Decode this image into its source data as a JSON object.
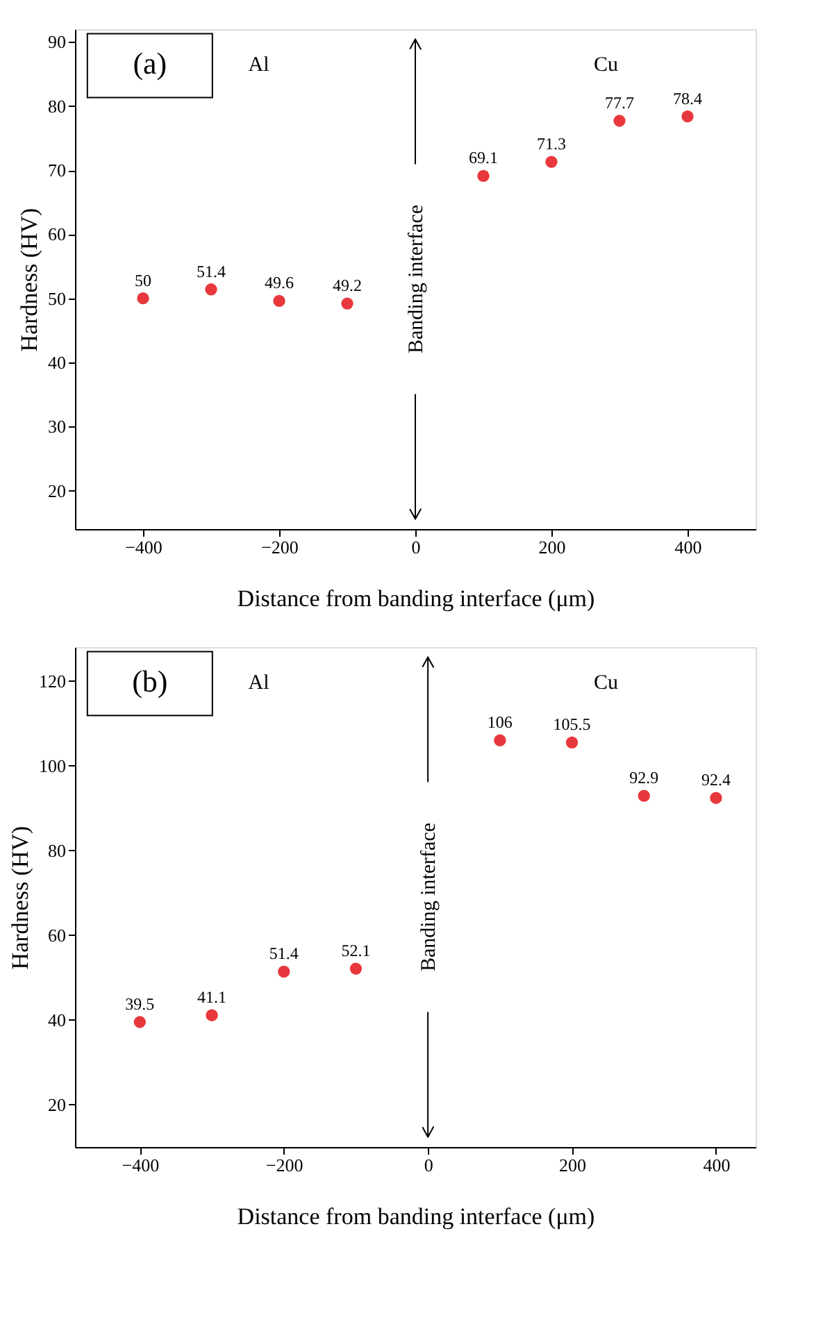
{
  "chart_data": [
    {
      "type": "scatter",
      "xlabel": "Distance from banding interface (μm)",
      "ylabel": "Hardness (HV)",
      "annotations": [
        "(a)",
        "Al",
        "Cu"
      ],
      "x": [
        -400,
        -300,
        -200,
        -100,
        100,
        200,
        300,
        400
      ],
      "series": [
        {
          "color": "#e8383d",
          "values": [
            50,
            51.4,
            49.6,
            49.2,
            69.1,
            71.3,
            77.7,
            78.4
          ]
        }
      ],
      "xlim": [
        -500,
        500
      ],
      "xticks": [
        -400,
        -200,
        0,
        200,
        400
      ],
      "ylim": [
        14,
        92
      ],
      "yticks": [
        20,
        30,
        40,
        50,
        60,
        70,
        80,
        90
      ],
      "ref_lines": [
        {
          "axis": "x",
          "value": 0,
          "label": "Banding interface",
          "color": "#000000"
        }
      ],
      "data_labels": true,
      "marker": "circle"
    },
    {
      "type": "scatter",
      "xlabel": "Distance from banding interface (μm)",
      "ylabel": "Hardness (HV)",
      "annotations": [
        "(b)",
        "Al",
        "Cu"
      ],
      "x": [
        -400,
        -300,
        -200,
        -100,
        100,
        200,
        300,
        400
      ],
      "series": [
        {
          "color": "#e8383d",
          "values": [
            39.5,
            41.1,
            51.4,
            52.1,
            106,
            105.5,
            92.9,
            92.4
          ]
        }
      ],
      "xlim": [
        -490,
        455
      ],
      "xticks": [
        -400,
        -200,
        0,
        200,
        400
      ],
      "ylim": [
        10,
        128
      ],
      "yticks": [
        20,
        40,
        60,
        80,
        100,
        120
      ],
      "ref_lines": [
        {
          "axis": "x",
          "value": 0,
          "label": "Banding interface",
          "color": "#000000"
        }
      ],
      "data_labels": true,
      "marker": "circle"
    }
  ]
}
